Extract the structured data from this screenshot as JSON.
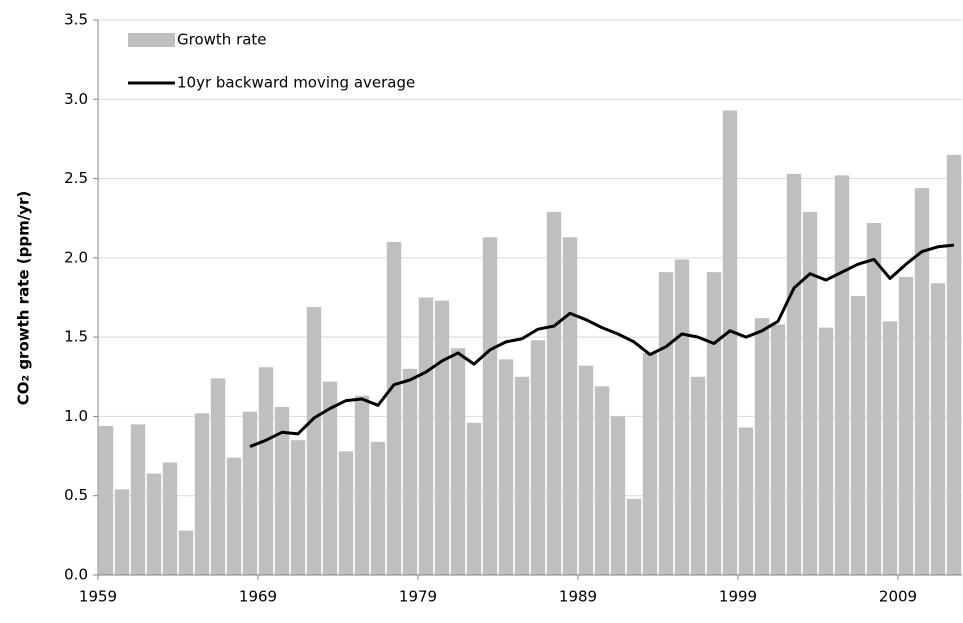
{
  "chart_data": {
    "type": "bar_line",
    "y_label": "CO₂ growth rate (ppm/yr)",
    "x": [
      1959,
      1960,
      1961,
      1962,
      1963,
      1964,
      1965,
      1966,
      1967,
      1968,
      1969,
      1970,
      1971,
      1972,
      1973,
      1974,
      1975,
      1976,
      1977,
      1978,
      1979,
      1980,
      1981,
      1982,
      1983,
      1984,
      1985,
      1986,
      1987,
      1988,
      1989,
      1990,
      1991,
      1992,
      1993,
      1994,
      1995,
      1996,
      1997,
      1998,
      1999,
      2000,
      2001,
      2002,
      2003,
      2004,
      2005,
      2006,
      2007,
      2008,
      2009,
      2010,
      2011,
      2012
    ],
    "series": [
      {
        "name": "Growth rate",
        "kind": "bar",
        "color": "#bfbfbf",
        "values": [
          0.94,
          0.54,
          0.95,
          0.64,
          0.71,
          0.28,
          1.02,
          1.24,
          0.74,
          1.03,
          1.31,
          1.06,
          0.85,
          1.69,
          1.22,
          0.78,
          1.13,
          0.84,
          2.1,
          1.3,
          1.75,
          1.73,
          1.43,
          0.96,
          2.13,
          1.36,
          1.25,
          1.48,
          2.29,
          2.13,
          1.32,
          1.19,
          1.0,
          0.48,
          1.4,
          1.91,
          1.99,
          1.25,
          1.91,
          2.93,
          0.93,
          1.62,
          1.58,
          2.53,
          2.29,
          1.56,
          2.52,
          1.76,
          2.22,
          1.6,
          1.88,
          2.44,
          1.84,
          2.65
        ]
      },
      {
        "name": "10yr backward moving average",
        "kind": "line",
        "color": "#000000",
        "values": [
          null,
          null,
          null,
          null,
          null,
          null,
          null,
          null,
          null,
          0.81,
          0.85,
          0.9,
          0.89,
          0.99,
          1.05,
          1.1,
          1.11,
          1.07,
          1.2,
          1.23,
          1.28,
          1.35,
          1.4,
          1.33,
          1.42,
          1.47,
          1.49,
          1.55,
          1.57,
          1.65,
          1.61,
          1.56,
          1.52,
          1.47,
          1.39,
          1.44,
          1.52,
          1.5,
          1.46,
          1.54,
          1.5,
          1.54,
          1.6,
          1.81,
          1.9,
          1.86,
          1.91,
          1.96,
          1.99,
          1.87,
          1.96,
          2.04,
          2.07,
          2.08
        ]
      }
    ],
    "xlim": [
      1958.5,
      2012.5
    ],
    "xticks": [
      1959,
      1969,
      1979,
      1989,
      1999,
      2009
    ],
    "ylim": [
      0,
      3.5
    ],
    "yticks": [
      {
        "value": 0,
        "label": "0.0"
      },
      {
        "value": 0.5,
        "label": "0.5"
      },
      {
        "value": 1,
        "label": "1.0"
      },
      {
        "value": 1.5,
        "label": "1.5"
      },
      {
        "value": 2,
        "label": "2.0"
      },
      {
        "value": 2.5,
        "label": "2.5"
      },
      {
        "value": 3,
        "label": "3.0"
      },
      {
        "value": 3.5,
        "label": "3.5"
      }
    ],
    "grid": true,
    "legend": "top-left"
  }
}
